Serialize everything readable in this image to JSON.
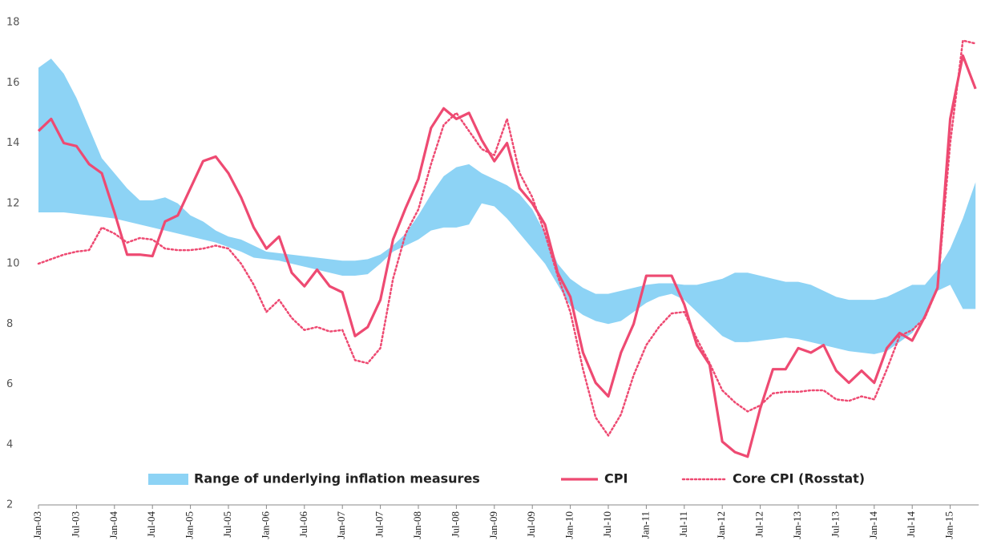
{
  "chart_data": {
    "type": "line",
    "categories": [
      "Jan-03",
      null,
      null,
      "Jul-03",
      null,
      null,
      "Jan-04",
      null,
      null,
      "Jul-04",
      null,
      null,
      "Jan-05",
      null,
      null,
      "Jul-05",
      null,
      null,
      "Jan-06",
      null,
      null,
      "Jul-06",
      null,
      null,
      "Jan-07",
      null,
      null,
      "Jul-07",
      null,
      null,
      "Jan-08",
      null,
      null,
      "Jul-08",
      null,
      null,
      "Jan-09",
      null,
      null,
      "Jul-09",
      null,
      null,
      "Jan-10",
      null,
      null,
      "Jul-10",
      null,
      null,
      "Jan-11",
      null,
      null,
      "Jul-11",
      null,
      null,
      "Jan-12",
      null,
      null,
      "Jul-12",
      null,
      null,
      "Jan-13",
      null,
      null,
      "Jul-13",
      null,
      null,
      "Jan-14",
      null,
      null,
      "Jul-14",
      null,
      null,
      "Jan-15",
      null,
      null
    ],
    "band": {
      "name": "Range of underlying inflation measures",
      "color": "#8dd3f5",
      "upper": [
        16.5,
        16.8,
        16.3,
        15.5,
        14.5,
        13.5,
        13.0,
        12.5,
        12.1,
        12.1,
        12.2,
        12.0,
        11.6,
        11.4,
        11.1,
        10.9,
        10.8,
        10.6,
        10.4,
        10.35,
        10.3,
        10.25,
        10.2,
        10.15,
        10.1,
        10.1,
        10.15,
        10.3,
        10.6,
        11.0,
        11.6,
        12.3,
        12.9,
        13.2,
        13.3,
        13.0,
        12.8,
        12.6,
        12.3,
        11.8,
        11.0,
        10.0,
        9.5,
        9.2,
        9.0,
        9.0,
        9.1,
        9.2,
        9.3,
        9.35,
        9.35,
        9.3,
        9.3,
        9.4,
        9.5,
        9.7,
        9.7,
        9.6,
        9.5,
        9.4,
        9.4,
        9.3,
        9.1,
        8.9,
        8.8,
        8.8,
        8.8,
        8.9,
        9.1,
        9.3,
        9.3,
        9.8,
        10.5,
        11.5,
        12.7
      ],
      "lower": [
        11.7,
        11.7,
        11.7,
        11.65,
        11.6,
        11.55,
        11.5,
        11.4,
        11.3,
        11.2,
        11.1,
        11.0,
        10.9,
        10.8,
        10.7,
        10.55,
        10.4,
        10.2,
        10.15,
        10.1,
        10.0,
        9.9,
        9.8,
        9.7,
        9.6,
        9.6,
        9.65,
        10.0,
        10.4,
        10.6,
        10.8,
        11.1,
        11.2,
        11.2,
        11.3,
        12.0,
        11.9,
        11.5,
        11.0,
        10.5,
        10.0,
        9.3,
        8.6,
        8.3,
        8.1,
        8.0,
        8.1,
        8.4,
        8.7,
        8.9,
        9.0,
        8.8,
        8.4,
        8.0,
        7.6,
        7.4,
        7.4,
        7.45,
        7.5,
        7.55,
        7.5,
        7.4,
        7.3,
        7.2,
        7.1,
        7.05,
        7.0,
        7.1,
        7.4,
        7.7,
        8.3,
        9.1,
        9.3,
        8.5,
        8.5
      ]
    },
    "series": [
      {
        "name": "CPI",
        "color": "#ee4a72",
        "style": "solid",
        "values": [
          14.4,
          14.8,
          14.0,
          13.9,
          13.3,
          13.0,
          11.7,
          10.3,
          10.3,
          10.25,
          11.4,
          11.6,
          12.5,
          13.4,
          13.55,
          13.0,
          12.2,
          11.2,
          10.5,
          10.9,
          9.7,
          9.25,
          9.8,
          9.25,
          9.05,
          7.6,
          7.9,
          8.8,
          10.8,
          11.85,
          12.8,
          14.5,
          15.15,
          14.8,
          15.0,
          14.1,
          13.4,
          14.0,
          12.5,
          12.0,
          11.3,
          9.7,
          8.9,
          7.05,
          6.05,
          5.6,
          7.05,
          8.0,
          9.6,
          9.6,
          9.6,
          8.65,
          7.3,
          6.65,
          4.1,
          3.75,
          3.6,
          5.2,
          6.5,
          6.5,
          7.2,
          7.05,
          7.3,
          6.45,
          6.05,
          6.45,
          6.05,
          7.2,
          7.7,
          7.45,
          8.25,
          9.2,
          14.8,
          16.9,
          15.8
        ]
      },
      {
        "name": "Core CPI (Rosstat)",
        "color": "#ee4a72",
        "style": "dotted",
        "values": [
          10.0,
          10.15,
          10.3,
          10.4,
          10.45,
          11.2,
          11.0,
          10.7,
          10.85,
          10.8,
          10.5,
          10.45,
          10.45,
          10.5,
          10.6,
          10.5,
          10.0,
          9.3,
          8.4,
          8.8,
          8.2,
          7.8,
          7.9,
          7.75,
          7.8,
          6.8,
          6.7,
          7.2,
          9.5,
          11.0,
          11.8,
          13.3,
          14.6,
          15.0,
          14.4,
          13.8,
          13.6,
          14.8,
          13.0,
          12.2,
          11.0,
          9.6,
          8.4,
          6.5,
          4.9,
          4.3,
          5.0,
          6.3,
          7.3,
          7.9,
          8.35,
          8.4,
          7.5,
          6.7,
          5.8,
          5.4,
          5.1,
          5.3,
          5.7,
          5.75,
          5.75,
          5.8,
          5.8,
          5.5,
          5.45,
          5.6,
          5.5,
          6.5,
          7.6,
          7.8,
          8.2,
          9.2,
          14.0,
          17.4,
          17.3
        ]
      }
    ],
    "ylim": [
      2,
      18
    ],
    "yticks": [
      2,
      4,
      6,
      8,
      10,
      12,
      14,
      16,
      18
    ]
  }
}
